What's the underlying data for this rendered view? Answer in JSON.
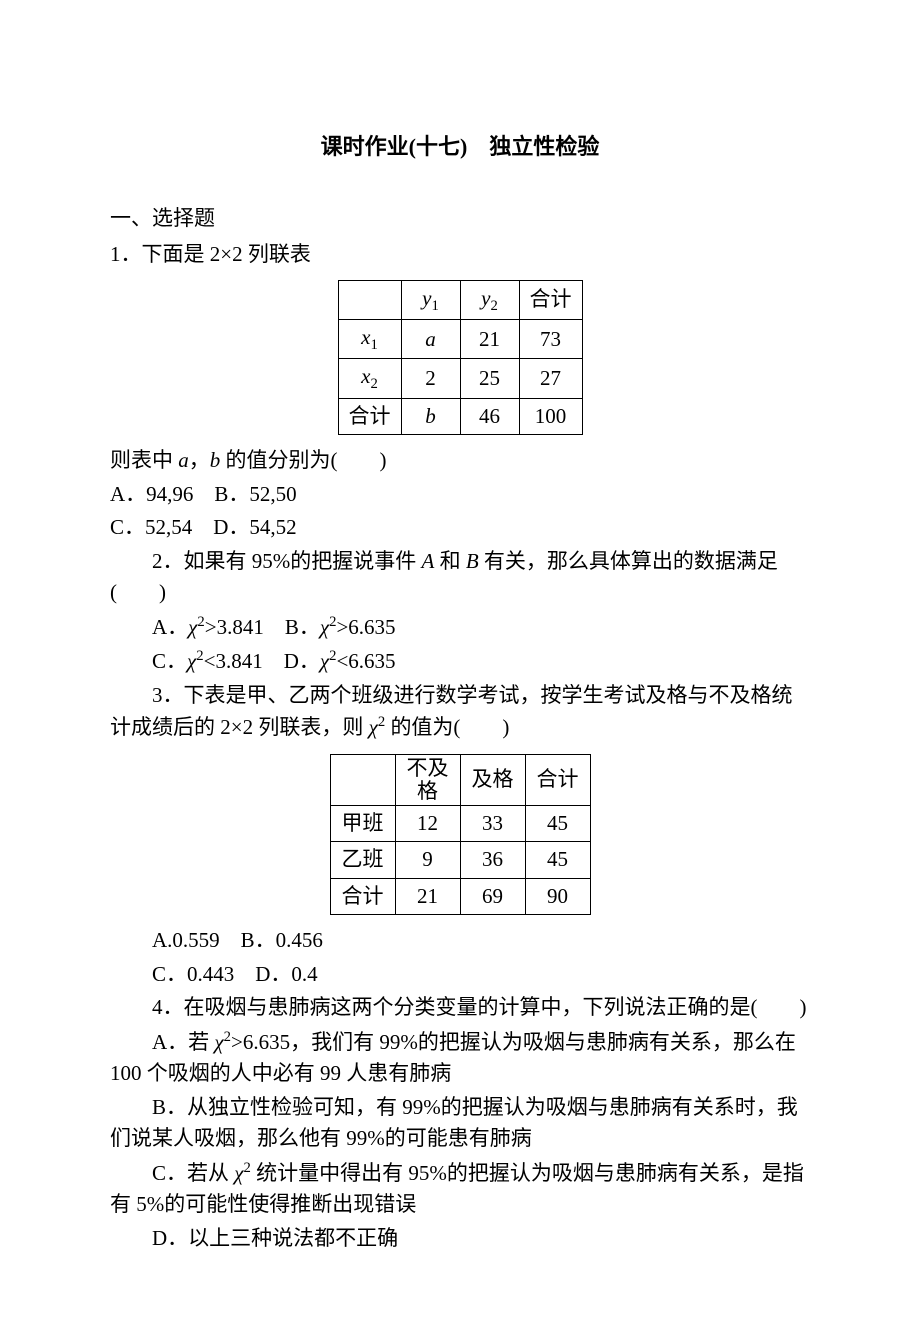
{
  "title": "课时作业(十七)　独立性检验",
  "section1_heading": "一、选择题",
  "q1": {
    "stem": "1．下面是 2×2 列联表",
    "table": {
      "header": [
        "",
        "y₁",
        "y₂",
        "合计"
      ],
      "rows": [
        [
          "x₁",
          "a",
          "21",
          "73"
        ],
        [
          "x₂",
          "2",
          "25",
          "27"
        ],
        [
          "合计",
          "b",
          "46",
          "100"
        ]
      ]
    },
    "tail": "则表中 a，b 的值分别为(　　)",
    "optA": "A．94,96",
    "optB": "B．52,50",
    "optC": "C．52,54",
    "optD": "D．54,52"
  },
  "q2": {
    "stem": "2．如果有 95%的把握说事件 A 和 B 有关，那么具体算出的数据满足(　　)",
    "optA": "A．χ²>3.841",
    "optB": "B．χ²>6.635",
    "optC": "C．χ²<3.841",
    "optD": "D．χ²<6.635"
  },
  "q3": {
    "stem": "3．下表是甲、乙两个班级进行数学考试，按学生考试及格与不及格统计成绩后的 2×2 列联表，则 χ² 的值为(　　)",
    "table": {
      "header": [
        "",
        "不及格",
        "及格",
        "合计"
      ],
      "rows": [
        [
          "甲班",
          "12",
          "33",
          "45"
        ],
        [
          "乙班",
          "9",
          "36",
          "45"
        ],
        [
          "合计",
          "21",
          "69",
          "90"
        ]
      ]
    },
    "optA": "A.0.559",
    "optB": "B．0.456",
    "optC": "C．0.443",
    "optD": "D．0.4"
  },
  "q4": {
    "stem": "4．在吸烟与患肺病这两个分类变量的计算中，下列说法正确的是(　　)",
    "optA": "A．若 χ²>6.635，我们有 99%的把握认为吸烟与患肺病有关系，那么在 100 个吸烟的人中必有 99 人患有肺病",
    "optB": "B．从独立性检验可知，有 99%的把握认为吸烟与患肺病有关系时，我们说某人吸烟，那么他有 99%的可能患有肺病",
    "optC": "C．若从 χ² 统计量中得出有 95%的把握认为吸烟与患肺病有关系，是指有 5%的可能性使得推断出现错误",
    "optD": "D．以上三种说法都不正确"
  }
}
